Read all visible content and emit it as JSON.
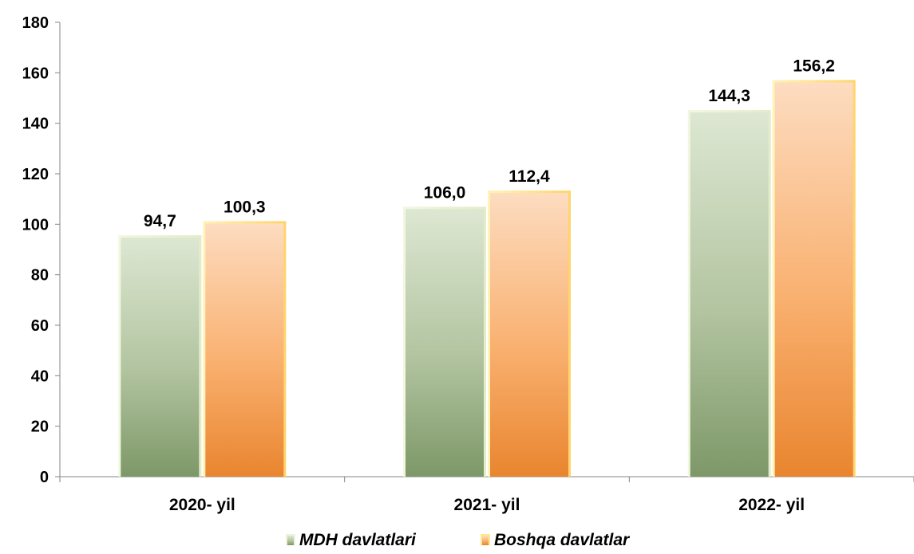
{
  "chart_data": {
    "type": "bar",
    "categories": [
      "2020- yil",
      "2021- yil",
      "2022- yil"
    ],
    "series": [
      {
        "name": "MDH davlatlari",
        "values": [
          94.7,
          106.0,
          144.3
        ],
        "data_labels": [
          "94,7",
          "106,0",
          "144,3"
        ],
        "color": "#8aa578"
      },
      {
        "name": "Boshqa davlatlar",
        "values": [
          100.3,
          112.4,
          156.2
        ],
        "data_labels": [
          "100,3",
          "112,4",
          "156,2"
        ],
        "color": "#f39a4c"
      }
    ],
    "ylim": [
      0,
      180
    ],
    "yticks": [
      0,
      20,
      40,
      60,
      80,
      100,
      120,
      140,
      160,
      180
    ],
    "grid": false,
    "legend_position": "bottom",
    "title": "",
    "xlabel": "",
    "ylabel": ""
  }
}
